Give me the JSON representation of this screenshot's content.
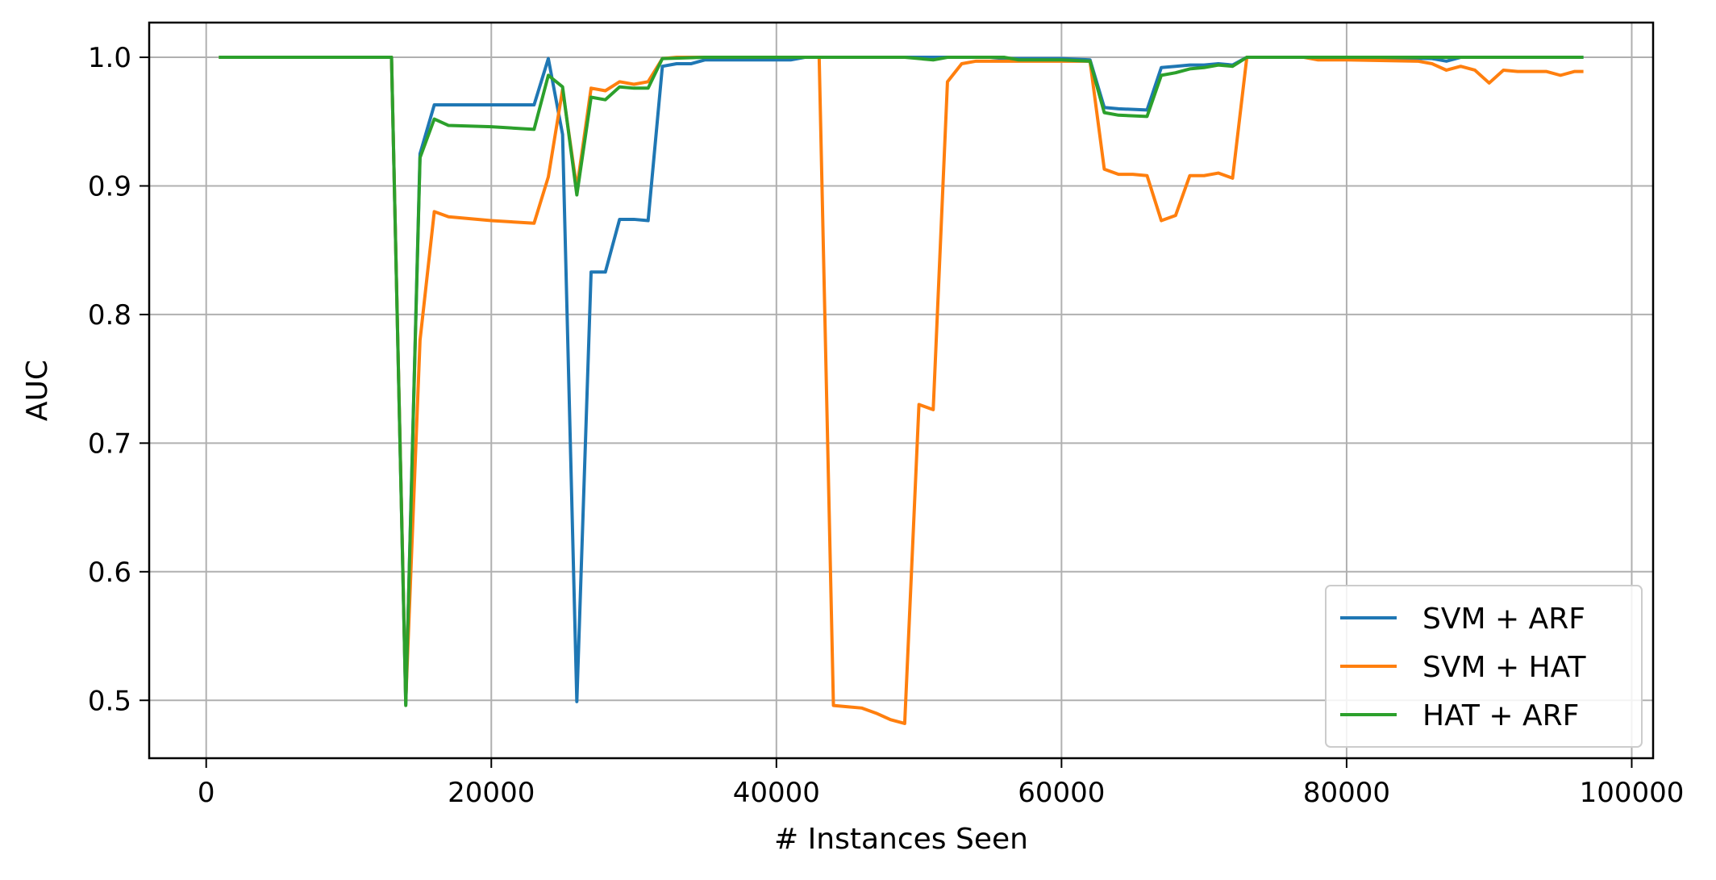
{
  "chart_data": {
    "type": "line",
    "title": "",
    "xlabel": "# Instances Seen",
    "ylabel": "AUC",
    "xlim": [
      -4000,
      101500
    ],
    "ylim": [
      0.455,
      1.027
    ],
    "xticks": [
      0,
      20000,
      40000,
      60000,
      80000,
      100000
    ],
    "xtick_labels": [
      "0",
      "20000",
      "40000",
      "60000",
      "80000",
      "100000"
    ],
    "yticks": [
      0.5,
      0.6,
      0.7,
      0.8,
      0.9,
      1.0
    ],
    "ytick_labels": [
      "0.5",
      "0.6",
      "0.7",
      "0.8",
      "0.9",
      "1.0"
    ],
    "grid": true,
    "legend_position": "lower-right",
    "series": [
      {
        "name": "SVM + ARF",
        "color": "#1f77b4",
        "points": [
          [
            1000,
            1.0
          ],
          [
            13000,
            1.0
          ],
          [
            14000,
            0.497
          ],
          [
            15000,
            0.925
          ],
          [
            16000,
            0.963
          ],
          [
            17000,
            0.963
          ],
          [
            20000,
            0.963
          ],
          [
            23000,
            0.963
          ],
          [
            24000,
            0.999
          ],
          [
            25000,
            0.94
          ],
          [
            26000,
            0.499
          ],
          [
            27000,
            0.833
          ],
          [
            28000,
            0.833
          ],
          [
            29000,
            0.874
          ],
          [
            30000,
            0.874
          ],
          [
            31000,
            0.873
          ],
          [
            32000,
            0.993
          ],
          [
            33000,
            0.995
          ],
          [
            34000,
            0.995
          ],
          [
            35000,
            0.998
          ],
          [
            40000,
            0.998
          ],
          [
            41000,
            0.998
          ],
          [
            42000,
            1.0
          ],
          [
            50000,
            1.0
          ],
          [
            55000,
            1.0
          ],
          [
            56000,
            0.999
          ],
          [
            60000,
            0.999
          ],
          [
            62000,
            0.998
          ],
          [
            63000,
            0.961
          ],
          [
            64000,
            0.96
          ],
          [
            66000,
            0.959
          ],
          [
            67000,
            0.992
          ],
          [
            68000,
            0.993
          ],
          [
            69000,
            0.994
          ],
          [
            70000,
            0.994
          ],
          [
            71000,
            0.995
          ],
          [
            72000,
            0.994
          ],
          [
            73000,
            1.0
          ],
          [
            80000,
            1.0
          ],
          [
            86000,
            0.999
          ],
          [
            87000,
            0.997
          ],
          [
            88000,
            1.0
          ],
          [
            96500,
            1.0
          ]
        ]
      },
      {
        "name": "SVM + HAT",
        "color": "#ff7f0e",
        "points": [
          [
            1000,
            1.0
          ],
          [
            13000,
            1.0
          ],
          [
            14000,
            0.5
          ],
          [
            15000,
            0.78
          ],
          [
            16000,
            0.88
          ],
          [
            17000,
            0.876
          ],
          [
            20000,
            0.873
          ],
          [
            23000,
            0.871
          ],
          [
            24000,
            0.907
          ],
          [
            25000,
            0.975
          ],
          [
            26000,
            0.898
          ],
          [
            27000,
            0.976
          ],
          [
            28000,
            0.974
          ],
          [
            29000,
            0.981
          ],
          [
            30000,
            0.979
          ],
          [
            31000,
            0.981
          ],
          [
            32000,
            0.999
          ],
          [
            33000,
            1.0
          ],
          [
            43000,
            1.0
          ],
          [
            44000,
            0.496
          ],
          [
            45000,
            0.495
          ],
          [
            46000,
            0.494
          ],
          [
            47000,
            0.49
          ],
          [
            48000,
            0.485
          ],
          [
            49000,
            0.482
          ],
          [
            50000,
            0.73
          ],
          [
            51000,
            0.726
          ],
          [
            52000,
            0.981
          ],
          [
            53000,
            0.995
          ],
          [
            54000,
            0.997
          ],
          [
            56000,
            0.997
          ],
          [
            57000,
            0.997
          ],
          [
            60000,
            0.997
          ],
          [
            61000,
            0.997
          ],
          [
            62000,
            0.997
          ],
          [
            63000,
            0.913
          ],
          [
            64000,
            0.909
          ],
          [
            65000,
            0.909
          ],
          [
            66000,
            0.908
          ],
          [
            67000,
            0.873
          ],
          [
            68000,
            0.877
          ],
          [
            69000,
            0.908
          ],
          [
            70000,
            0.908
          ],
          [
            71000,
            0.91
          ],
          [
            72000,
            0.906
          ],
          [
            73000,
            1.0
          ],
          [
            77000,
            1.0
          ],
          [
            78000,
            0.998
          ],
          [
            80000,
            0.998
          ],
          [
            85000,
            0.997
          ],
          [
            86000,
            0.995
          ],
          [
            87000,
            0.99
          ],
          [
            88000,
            0.993
          ],
          [
            89000,
            0.99
          ],
          [
            90000,
            0.98
          ],
          [
            91000,
            0.99
          ],
          [
            92000,
            0.989
          ],
          [
            93000,
            0.989
          ],
          [
            94000,
            0.989
          ],
          [
            95000,
            0.986
          ],
          [
            96000,
            0.989
          ],
          [
            96500,
            0.989
          ]
        ]
      },
      {
        "name": "HAT + ARF",
        "color": "#2ca02c",
        "points": [
          [
            1000,
            1.0
          ],
          [
            13000,
            1.0
          ],
          [
            14000,
            0.496
          ],
          [
            15000,
            0.922
          ],
          [
            16000,
            0.952
          ],
          [
            17000,
            0.947
          ],
          [
            20000,
            0.946
          ],
          [
            23000,
            0.944
          ],
          [
            24000,
            0.986
          ],
          [
            25000,
            0.977
          ],
          [
            26000,
            0.893
          ],
          [
            27000,
            0.969
          ],
          [
            28000,
            0.967
          ],
          [
            29000,
            0.977
          ],
          [
            30000,
            0.976
          ],
          [
            31000,
            0.976
          ],
          [
            32000,
            0.999
          ],
          [
            35000,
            1.0
          ],
          [
            49000,
            1.0
          ],
          [
            51000,
            0.998
          ],
          [
            52000,
            1.0
          ],
          [
            56000,
            1.0
          ],
          [
            57000,
            0.998
          ],
          [
            60000,
            0.998
          ],
          [
            62000,
            0.997
          ],
          [
            63000,
            0.957
          ],
          [
            64000,
            0.955
          ],
          [
            66000,
            0.954
          ],
          [
            67000,
            0.986
          ],
          [
            68000,
            0.988
          ],
          [
            69000,
            0.991
          ],
          [
            70000,
            0.992
          ],
          [
            71000,
            0.994
          ],
          [
            72000,
            0.993
          ],
          [
            73000,
            1.0
          ],
          [
            80000,
            1.0
          ],
          [
            96500,
            1.0
          ]
        ]
      }
    ]
  }
}
